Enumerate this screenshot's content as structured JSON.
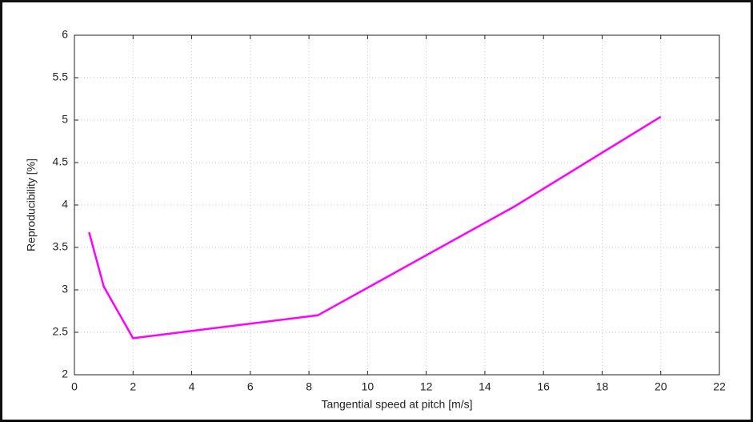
{
  "chart_data": {
    "type": "line",
    "xlabel": "Tangential speed at pitch [m/s]",
    "ylabel": "Reproducibility [%]",
    "x": [
      0.5,
      1,
      2,
      8.3,
      15,
      20
    ],
    "series": [
      {
        "color": "#ff00ff",
        "values": [
          3.68,
          3.04,
          2.43,
          2.7,
          3.98,
          5.04
        ]
      }
    ],
    "xlim": [
      0,
      22
    ],
    "xticks": [
      0,
      2,
      4,
      6,
      8,
      10,
      12,
      14,
      16,
      18,
      20,
      22
    ],
    "ylim": [
      2,
      6
    ],
    "yticks": [
      2,
      2.5,
      3,
      3.5,
      4,
      4.5,
      5,
      5.5,
      6
    ],
    "grid": true
  }
}
